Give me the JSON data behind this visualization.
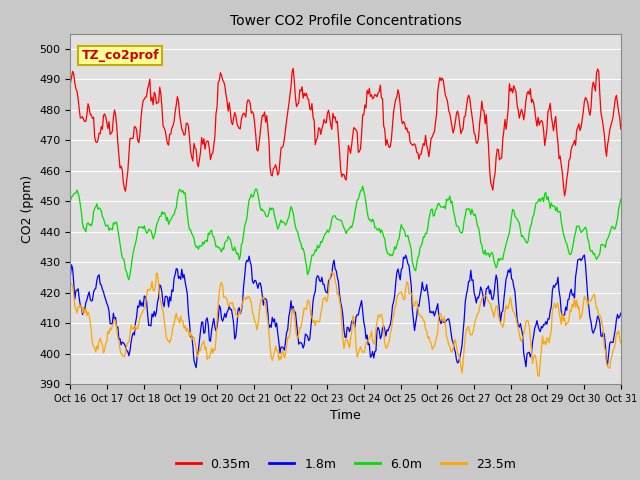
{
  "title": "Tower CO2 Profile Concentrations",
  "xlabel": "Time",
  "ylabel": "CO2 (ppm)",
  "ylim": [
    390,
    505
  ],
  "yticks": [
    390,
    400,
    410,
    420,
    430,
    440,
    450,
    460,
    470,
    480,
    490,
    500
  ],
  "xtick_labels": [
    "Oct 16",
    "Oct 17",
    "Oct 18",
    "Oct 19",
    "Oct 20",
    "Oct 21",
    "Oct 22",
    "Oct 23",
    "Oct 24",
    "Oct 25",
    "Oct 26",
    "Oct 27",
    "Oct 28",
    "Oct 29",
    "Oct 30",
    "Oct 31"
  ],
  "legend_labels": [
    "0.35m",
    "1.8m",
    "6.0m",
    "23.5m"
  ],
  "line_colors": [
    "red",
    "blue",
    "#00dd00",
    "orange"
  ],
  "fig_bg_color": "#c8c8c8",
  "plot_bg_color": "#e0e0e0",
  "grid_color": "#ffffff",
  "annotation_text": "TZ_co2prof",
  "annotation_bg": "#ffff99",
  "annotation_border": "#ccaa00",
  "annotation_text_color": "#cc0000",
  "n_points": 500,
  "seed": 42
}
